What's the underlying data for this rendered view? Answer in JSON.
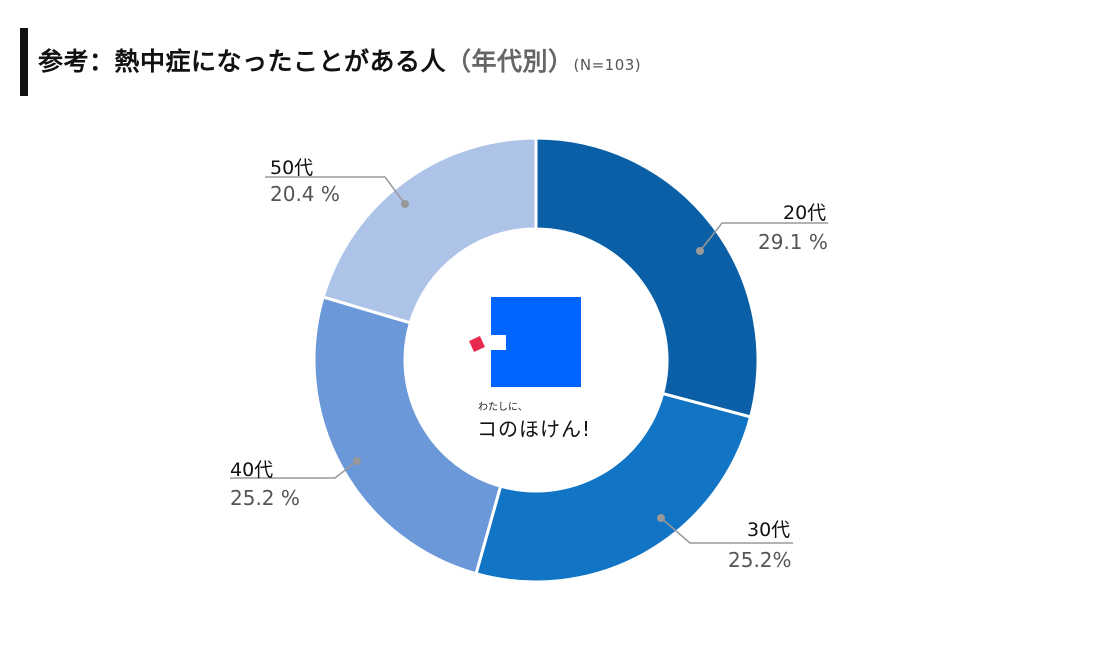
{
  "title": {
    "main": "参考：熱中症になったことがある人",
    "sub": "（年代別）",
    "n": "(N=103)"
  },
  "logo": {
    "tagline_small": "わたしに、",
    "tagline_large": "コのほけん!"
  },
  "chart_data": {
    "type": "pie",
    "donut": true,
    "title": "参考：熱中症になったことがある人（年代別）(N=103)",
    "categories": [
      "20代",
      "30代",
      "40代",
      "50代"
    ],
    "values": [
      29.1,
      25.2,
      25.2,
      20.4
    ],
    "labels": [
      "29.1 %",
      "25.2%",
      "25.2 %",
      "20.4 %"
    ],
    "colors": [
      "#0a5fa6",
      "#1174c4",
      "#6a98d8",
      "#aec3e8"
    ],
    "start": "top",
    "direction": "clockwise",
    "legend": "callout labels"
  }
}
